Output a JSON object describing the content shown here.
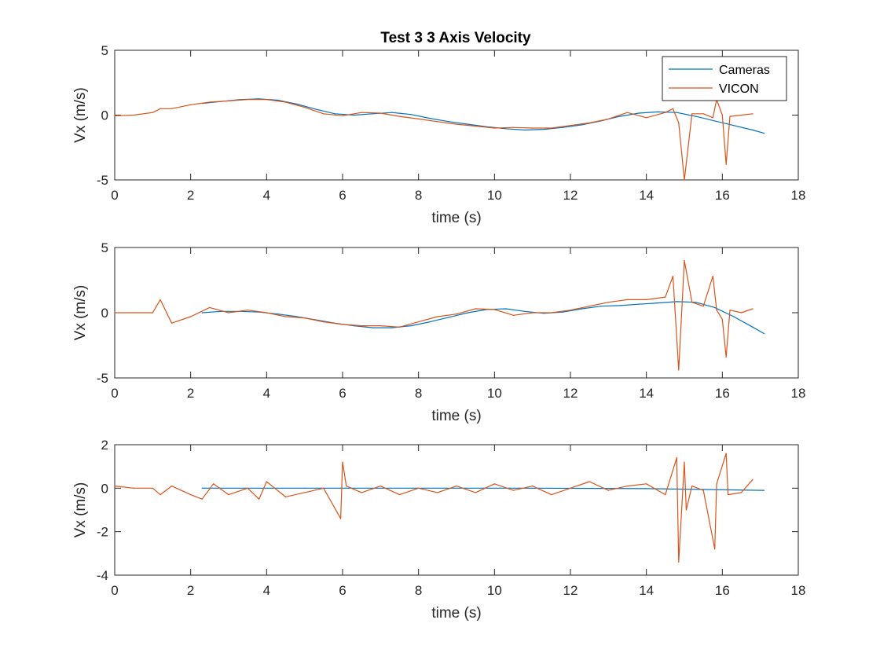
{
  "figure": {
    "title": "Test 3 3 Axis Velocity",
    "colors": {
      "Cameras": "#0072BD",
      "VICON": "#D95319",
      "axes": "#262626",
      "background": "#ffffff"
    }
  },
  "chart_data": [
    {
      "type": "line",
      "title": "Test 3 3 Axis Velocity",
      "xlabel": "time (s)",
      "ylabel": "Vx (m/s)",
      "xlim": [
        0,
        18
      ],
      "ylim": [
        -5,
        5
      ],
      "xticks": [
        0,
        2,
        4,
        6,
        8,
        10,
        12,
        14,
        16,
        18
      ],
      "yticks": [
        -5,
        0,
        5
      ],
      "grid": false,
      "legend": {
        "location": "top-right",
        "entries": [
          "Cameras",
          "VICON"
        ]
      },
      "series": [
        {
          "name": "Cameras",
          "x": [
            2.3,
            2.8,
            3.3,
            3.8,
            4.3,
            4.8,
            5.3,
            5.8,
            6.3,
            6.8,
            7.3,
            7.8,
            8.3,
            8.8,
            9.3,
            9.8,
            10.3,
            10.8,
            11.3,
            11.8,
            12.3,
            12.8,
            13.3,
            13.8,
            14.3,
            14.8,
            15.3,
            15.8,
            16.3,
            16.8,
            17.1
          ],
          "y": [
            0.9,
            1.05,
            1.2,
            1.25,
            1.15,
            0.85,
            0.45,
            0.1,
            0.0,
            0.1,
            0.2,
            0.05,
            -0.25,
            -0.5,
            -0.7,
            -0.9,
            -1.05,
            -1.15,
            -1.1,
            -0.95,
            -0.75,
            -0.45,
            -0.1,
            0.15,
            0.25,
            0.2,
            -0.1,
            -0.45,
            -0.8,
            -1.15,
            -1.4
          ]
        },
        {
          "name": "VICON",
          "x": [
            0.0,
            0.5,
            1.0,
            1.2,
            1.5,
            2.0,
            2.5,
            3.0,
            3.5,
            4.0,
            4.5,
            5.0,
            5.5,
            6.0,
            6.5,
            7.0,
            7.5,
            8.0,
            8.5,
            9.0,
            9.5,
            10.0,
            10.5,
            11.0,
            11.5,
            12.0,
            12.5,
            13.0,
            13.5,
            14.0,
            14.5,
            14.7,
            14.85,
            15.0,
            15.2,
            15.5,
            15.75,
            15.85,
            16.0,
            16.1,
            16.2,
            16.5,
            16.8
          ],
          "y": [
            -0.05,
            0.0,
            0.2,
            0.5,
            0.5,
            0.8,
            1.0,
            1.1,
            1.2,
            1.2,
            1.0,
            0.6,
            0.1,
            -0.05,
            0.2,
            0.15,
            -0.1,
            -0.3,
            -0.5,
            -0.7,
            -0.85,
            -1.0,
            -0.95,
            -1.0,
            -1.0,
            -0.8,
            -0.6,
            -0.3,
            0.2,
            -0.2,
            0.2,
            0.5,
            -0.6,
            -5.0,
            0.1,
            0.1,
            -0.2,
            1.2,
            0.0,
            -3.8,
            -0.1,
            0.0,
            0.1
          ]
        }
      ]
    },
    {
      "type": "line",
      "title": "",
      "xlabel": "time (s)",
      "ylabel": "Vx (m/s)",
      "xlim": [
        0,
        18
      ],
      "ylim": [
        -5,
        5
      ],
      "xticks": [
        0,
        2,
        4,
        6,
        8,
        10,
        12,
        14,
        16,
        18
      ],
      "yticks": [
        -5,
        0,
        5
      ],
      "grid": false,
      "series": [
        {
          "name": "Cameras",
          "x": [
            2.3,
            2.8,
            3.3,
            3.8,
            4.3,
            4.8,
            5.3,
            5.8,
            6.3,
            6.8,
            7.3,
            7.8,
            8.3,
            8.8,
            9.3,
            9.8,
            10.3,
            10.8,
            11.3,
            11.8,
            12.3,
            12.8,
            13.3,
            13.8,
            14.3,
            14.8,
            15.3,
            15.8,
            16.3,
            16.8,
            17.1
          ],
          "y": [
            0.0,
            0.1,
            0.1,
            0.05,
            -0.1,
            -0.3,
            -0.55,
            -0.8,
            -1.0,
            -1.15,
            -1.15,
            -1.0,
            -0.7,
            -0.35,
            0.0,
            0.25,
            0.3,
            0.1,
            -0.05,
            0.05,
            0.3,
            0.5,
            0.55,
            0.65,
            0.75,
            0.85,
            0.8,
            0.4,
            -0.3,
            -1.1,
            -1.6
          ]
        },
        {
          "name": "VICON",
          "x": [
            0.0,
            0.5,
            1.0,
            1.2,
            1.5,
            2.0,
            2.5,
            3.0,
            3.5,
            4.0,
            4.5,
            5.0,
            5.5,
            6.0,
            6.5,
            7.0,
            7.5,
            8.0,
            8.5,
            9.0,
            9.5,
            10.0,
            10.5,
            11.0,
            11.5,
            12.0,
            12.5,
            13.0,
            13.5,
            14.0,
            14.5,
            14.7,
            14.85,
            15.0,
            15.2,
            15.5,
            15.75,
            15.85,
            16.0,
            16.1,
            16.2,
            16.5,
            16.8
          ],
          "y": [
            0.0,
            0.0,
            0.0,
            1.0,
            -0.8,
            -0.3,
            0.4,
            0.0,
            0.2,
            0.0,
            -0.3,
            -0.4,
            -0.7,
            -0.9,
            -1.0,
            -1.0,
            -1.1,
            -0.7,
            -0.3,
            -0.1,
            0.3,
            0.25,
            -0.2,
            0.0,
            0.0,
            0.2,
            0.5,
            0.8,
            1.0,
            1.0,
            1.2,
            2.8,
            -4.4,
            4.0,
            0.8,
            0.5,
            2.8,
            0.2,
            -0.5,
            -3.4,
            0.2,
            0.0,
            0.3
          ]
        }
      ]
    },
    {
      "type": "line",
      "title": "",
      "xlabel": "time (s)",
      "ylabel": "Vx (m/s)",
      "xlim": [
        0,
        18
      ],
      "ylim": [
        -4,
        2
      ],
      "xticks": [
        0,
        2,
        4,
        6,
        8,
        10,
        12,
        14,
        16,
        18
      ],
      "yticks": [
        -4,
        -2,
        0,
        2
      ],
      "grid": false,
      "series": [
        {
          "name": "Cameras",
          "x": [
            2.3,
            5.0,
            8.0,
            11.0,
            14.0,
            17.1
          ],
          "y": [
            0.0,
            0.0,
            0.0,
            0.0,
            -0.02,
            -0.1
          ]
        },
        {
          "name": "VICON",
          "x": [
            0.0,
            0.5,
            1.0,
            1.2,
            1.5,
            2.0,
            2.3,
            2.6,
            3.0,
            3.5,
            3.8,
            4.0,
            4.5,
            5.0,
            5.5,
            5.95,
            6.0,
            6.1,
            6.5,
            7.0,
            7.5,
            8.0,
            8.5,
            9.0,
            9.5,
            10.0,
            10.5,
            11.0,
            11.5,
            12.0,
            12.5,
            13.0,
            13.5,
            14.0,
            14.5,
            14.8,
            14.85,
            15.0,
            15.05,
            15.2,
            15.5,
            15.8,
            15.85,
            16.1,
            16.15,
            16.5,
            16.8
          ],
          "y": [
            0.1,
            0.0,
            0.0,
            -0.3,
            0.1,
            -0.3,
            -0.5,
            0.2,
            -0.3,
            0.0,
            -0.5,
            0.3,
            -0.4,
            -0.2,
            0.0,
            -1.4,
            1.2,
            0.1,
            -0.2,
            0.1,
            -0.3,
            0.0,
            -0.2,
            0.1,
            -0.2,
            0.2,
            -0.1,
            0.1,
            -0.3,
            0.0,
            0.3,
            -0.1,
            0.1,
            0.2,
            -0.3,
            1.4,
            -3.4,
            1.2,
            -1.0,
            0.1,
            -0.1,
            -2.8,
            0.2,
            1.6,
            -0.3,
            -0.2,
            0.4
          ]
        }
      ]
    }
  ]
}
